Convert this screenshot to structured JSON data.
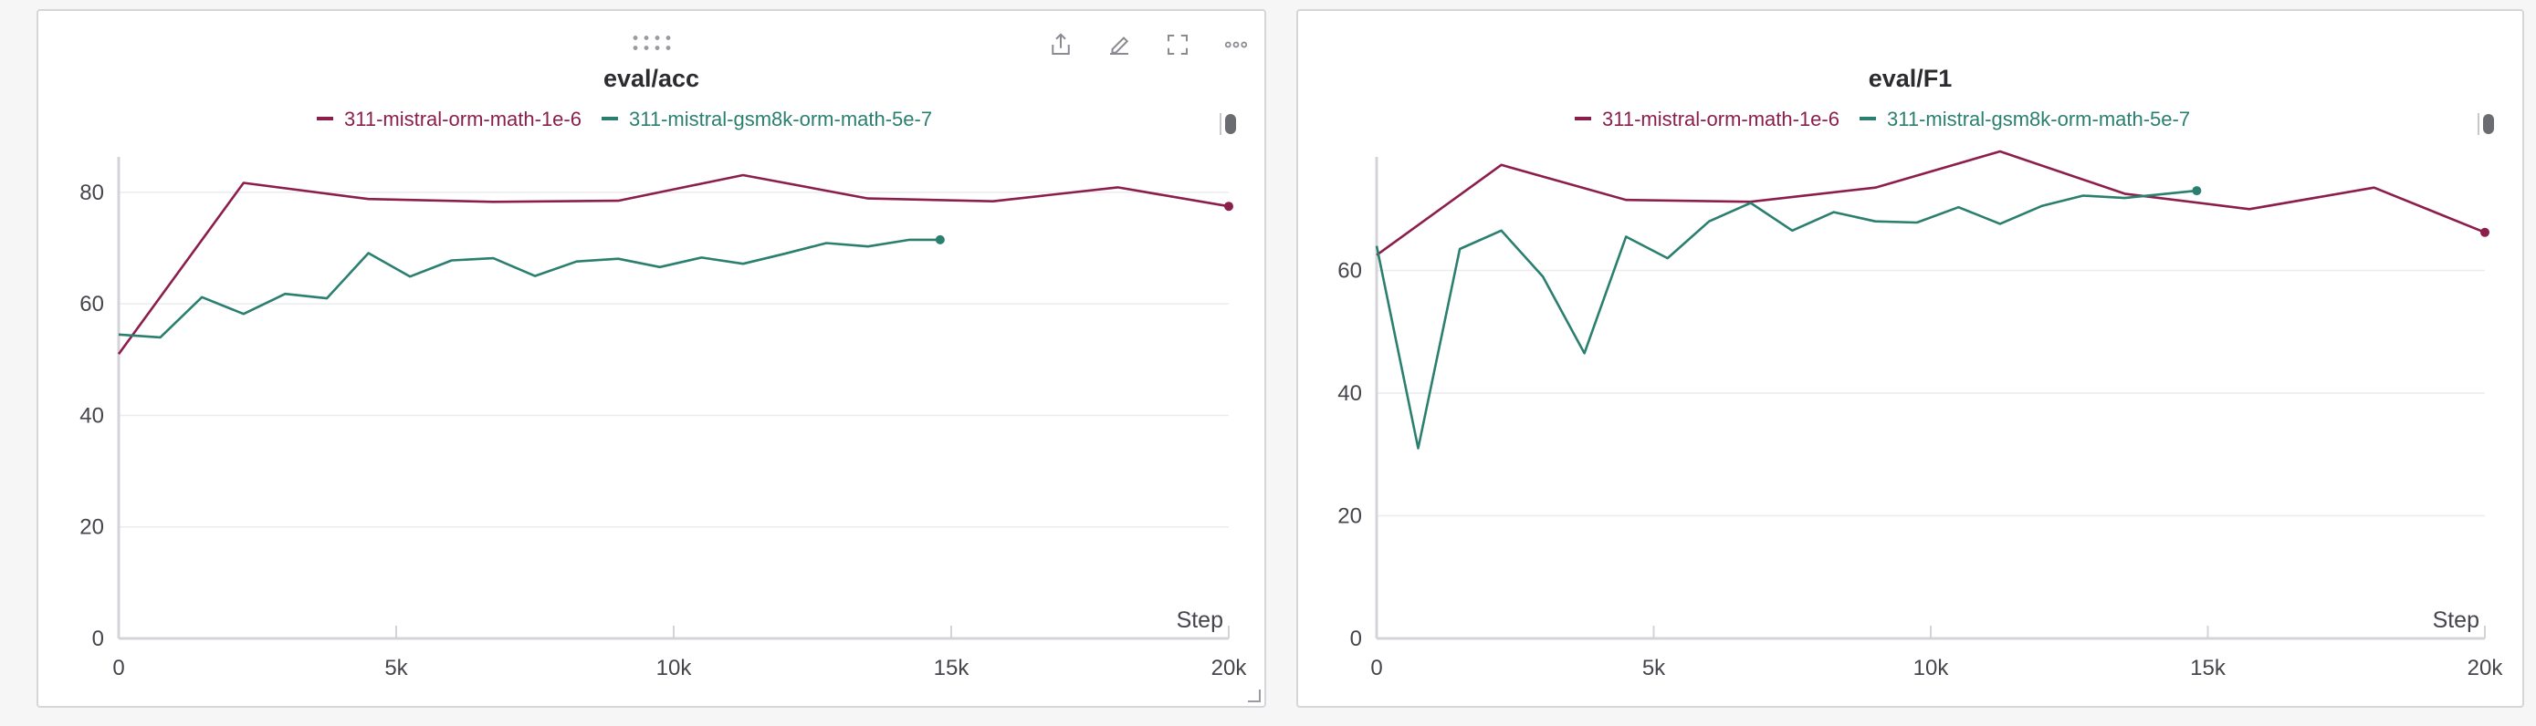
{
  "chart_data": [
    {
      "type": "line",
      "title": "eval/acc",
      "xlabel": "Step",
      "ylabel": "",
      "xlim": [
        0,
        20000
      ],
      "ylim": [
        0,
        88
      ],
      "xticks": [
        {
          "value": 0,
          "label": "0"
        },
        {
          "value": 5000,
          "label": "5k"
        },
        {
          "value": 10000,
          "label": "10k"
        },
        {
          "value": 15000,
          "label": "15k"
        },
        {
          "value": 20000,
          "label": "20k"
        }
      ],
      "yticks": [
        0,
        20,
        40,
        60,
        80
      ],
      "grid": true,
      "legend_position": "top",
      "series": [
        {
          "name": "311-mistral-orm-math-1e-6",
          "color": "#8b1e4b",
          "x": [
            0,
            2250,
            4500,
            6750,
            9000,
            11250,
            13500,
            15750,
            18000,
            20000
          ],
          "y": [
            51,
            81.7,
            78.8,
            78.3,
            78.5,
            83.1,
            78.9,
            78.4,
            80.9,
            77.5
          ]
        },
        {
          "name": "311-mistral-gsm8k-orm-math-5e-7",
          "color": "#2a7f6f",
          "x": [
            0,
            750,
            1500,
            2250,
            3000,
            3750,
            4500,
            5250,
            6000,
            6750,
            7500,
            8250,
            9000,
            9750,
            10500,
            11250,
            12000,
            12750,
            13500,
            14250,
            14800
          ],
          "y": [
            54.5,
            54,
            61.2,
            58.2,
            61.8,
            61,
            69.1,
            64.9,
            67.8,
            68.2,
            65,
            67.6,
            68.1,
            66.6,
            68.3,
            67.2,
            69,
            70.9,
            70.3,
            71.5,
            71.5
          ]
        }
      ]
    },
    {
      "type": "line",
      "title": "eval/F1",
      "xlabel": "Step",
      "ylabel": "",
      "xlim": [
        0,
        20000
      ],
      "ylim": [
        0,
        80
      ],
      "xticks": [
        {
          "value": 0,
          "label": "0"
        },
        {
          "value": 5000,
          "label": "5k"
        },
        {
          "value": 10000,
          "label": "10k"
        },
        {
          "value": 15000,
          "label": "15k"
        },
        {
          "value": 20000,
          "label": "20k"
        }
      ],
      "yticks": [
        0,
        20,
        40,
        60
      ],
      "grid": true,
      "legend_position": "top",
      "series": [
        {
          "name": "311-mistral-orm-math-1e-6",
          "color": "#8b1e4b",
          "x": [
            0,
            2250,
            4500,
            6750,
            9000,
            11250,
            13500,
            15750,
            18000,
            20000
          ],
          "y": [
            62.5,
            77.2,
            71.5,
            71.2,
            73.5,
            79.4,
            72.5,
            70,
            73.5,
            66.2
          ]
        },
        {
          "name": "311-mistral-gsm8k-orm-math-5e-7",
          "color": "#2a7f6f",
          "x": [
            0,
            750,
            1500,
            2250,
            3000,
            3750,
            4500,
            5250,
            6000,
            6750,
            7500,
            8250,
            9000,
            9750,
            10500,
            11250,
            12000,
            12750,
            13500,
            14250,
            14800
          ],
          "y": [
            64,
            31,
            63.5,
            66.5,
            59,
            46.5,
            65.5,
            62,
            68,
            71,
            66.5,
            69.5,
            68,
            67.8,
            70.3,
            67.6,
            70.5,
            72.2,
            71.8,
            72.5,
            73
          ]
        }
      ]
    }
  ]
}
